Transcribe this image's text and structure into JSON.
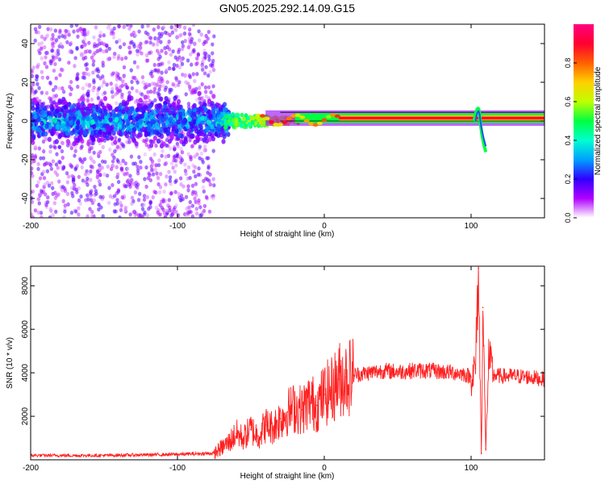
{
  "title": "GN05.2025.292.14.09.G15",
  "chart_data": [
    {
      "type": "heatmap",
      "title": "GN05.2025.292.14.09.G15",
      "xlabel": "Height of straight line (km)",
      "ylabel": "Frequency (Hz)",
      "xlim": [
        -200,
        150
      ],
      "ylim": [
        -50,
        50
      ],
      "xticks": [
        "-200",
        "-100",
        "0",
        "100"
      ],
      "xtick_values": [
        -200,
        -100,
        0,
        100
      ],
      "yticks": [
        "-40",
        "-20",
        "0",
        "20",
        "40"
      ],
      "ytick_values": [
        -40,
        -20,
        0,
        20,
        40
      ],
      "colorbar": {
        "label": "Normalized spectral amplitude",
        "range": [
          0,
          1
        ],
        "ticks": [
          "0.0",
          "0.2",
          "0.4",
          "0.6",
          "0.8"
        ],
        "tick_values": [
          0.0,
          0.2,
          0.4,
          0.6,
          0.8
        ],
        "colors": [
          "#ffffff",
          "#b000ff",
          "#3000ff",
          "#00a0ff",
          "#00ffd0",
          "#00ff40",
          "#c0ff00",
          "#ffd000",
          "#ff6000",
          "#ff0030",
          "#ff0080"
        ]
      },
      "features": [
        {
          "name": "noise-scatter",
          "x_range": [
            -200,
            -75
          ],
          "freq_range": [
            -50,
            50
          ],
          "amplitude": 0.1
        },
        {
          "name": "dense-band",
          "x_range": [
            -200,
            -65
          ],
          "freq_center": 0,
          "amplitude": 0.3
        },
        {
          "name": "signal-line",
          "x_range": [
            -65,
            150
          ],
          "freq_center": 1.5,
          "amplitude": 0.9
        },
        {
          "name": "spike",
          "x": 105,
          "freq_range": [
            -16,
            12
          ],
          "amplitude": 0.4
        }
      ]
    },
    {
      "type": "line",
      "xlabel": "Height of straight line (km)",
      "ylabel": "SNR (10 * v/v)",
      "xlim": [
        -200,
        150
      ],
      "ylim": [
        0,
        8900
      ],
      "xticks": [
        "-200",
        "-100",
        "0",
        "100"
      ],
      "xtick_values": [
        -200,
        -100,
        0,
        100
      ],
      "yticks": [
        "2000",
        "4000",
        "6000",
        "8000"
      ],
      "ytick_values": [
        2000,
        4000,
        6000,
        8000
      ],
      "color": "#ff2020",
      "series": [
        {
          "name": "SNR",
          "x": [
            -200,
            -150,
            -100,
            -75,
            -65,
            -60,
            -55,
            -50,
            -45,
            -40,
            -35,
            -30,
            -25,
            -20,
            -15,
            -10,
            -5,
            0,
            5,
            10,
            15,
            20,
            30,
            40,
            50,
            60,
            70,
            80,
            90,
            95,
            100,
            103,
            105,
            107,
            108,
            110,
            112,
            115,
            120,
            130,
            140,
            150
          ],
          "y": [
            200,
            200,
            250,
            300,
            800,
            1200,
            1000,
            1400,
            1100,
            1600,
            1500,
            1900,
            2200,
            2400,
            2300,
            2700,
            2500,
            3000,
            3200,
            3700,
            3800,
            3900,
            4000,
            4100,
            4050,
            4100,
            4100,
            4050,
            4000,
            3950,
            3800,
            4200,
            8800,
            300,
            7000,
            500,
            4600,
            3900,
            3850,
            3850,
            3800,
            3700
          ]
        }
      ]
    }
  ]
}
